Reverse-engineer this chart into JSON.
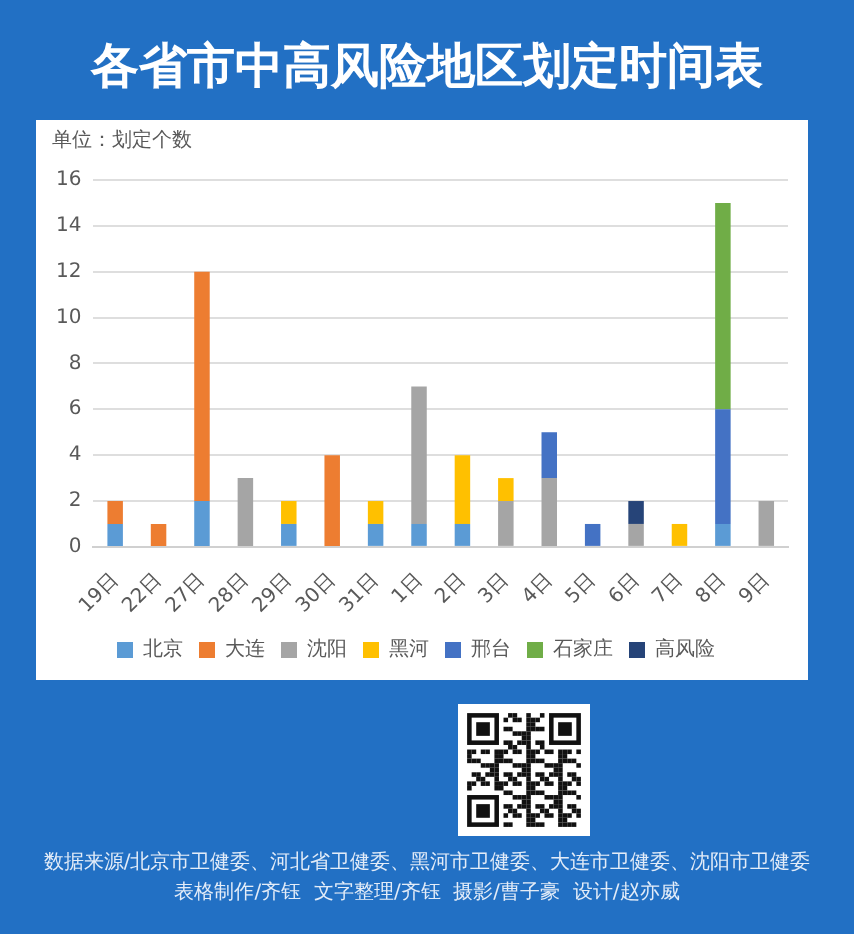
{
  "chart_data": {
    "type": "bar",
    "title": "各省市中高风险地区划定时间表",
    "ylabel": "单位：划定个数",
    "annotations": [
      "数据来源/北京市卫健委、河北省卫健委、黑河市卫健委、大连市卫健委、沈阳市卫健委",
      "表格制作/齐钰  文字整理/齐钰  摄影/曹子豪  设计/赵亦威"
    ],
    "categories": [
      "19日",
      "22日",
      "27日",
      "28日",
      "29日",
      "30日",
      "31日",
      "1日",
      "2日",
      "3日",
      "4日",
      "5日",
      "6日",
      "7日",
      "8日",
      "9日"
    ],
    "stacked": true,
    "ylim": [
      0,
      16
    ],
    "yticks": [
      0,
      2,
      4,
      6,
      8,
      10,
      12,
      14,
      16
    ],
    "grid": "y",
    "legend": "bottom",
    "series": [
      {
        "name": "北京",
        "color": "#5b9bd5",
        "values": [
          1,
          null,
          2,
          null,
          1,
          null,
          1,
          1,
          1,
          null,
          null,
          null,
          null,
          null,
          1,
          null
        ]
      },
      {
        "name": "大连",
        "color": "#ed7d31",
        "values": [
          1,
          1,
          10,
          null,
          null,
          4,
          null,
          null,
          null,
          null,
          null,
          null,
          null,
          null,
          null,
          null
        ]
      },
      {
        "name": "沈阳",
        "color": "#a5a5a5",
        "values": [
          null,
          null,
          null,
          3,
          null,
          null,
          null,
          6,
          null,
          2,
          3,
          null,
          1,
          null,
          null,
          2
        ]
      },
      {
        "name": "黑河",
        "color": "#ffc000",
        "values": [
          null,
          null,
          null,
          null,
          1,
          null,
          1,
          null,
          3,
          1,
          null,
          null,
          null,
          1,
          null,
          null
        ]
      },
      {
        "name": "邢台",
        "color": "#4472c4",
        "values": [
          null,
          null,
          null,
          null,
          null,
          null,
          null,
          null,
          null,
          null,
          2,
          1,
          null,
          null,
          5,
          null
        ]
      },
      {
        "name": "石家庄",
        "color": "#70ad47",
        "values": [
          null,
          null,
          null,
          null,
          null,
          null,
          null,
          null,
          null,
          null,
          null,
          null,
          null,
          null,
          9,
          null
        ]
      },
      {
        "name": "高风险",
        "color": "#264478",
        "values": [
          null,
          null,
          null,
          null,
          null,
          null,
          null,
          null,
          null,
          null,
          null,
          null,
          1,
          null,
          null,
          null
        ]
      }
    ]
  }
}
